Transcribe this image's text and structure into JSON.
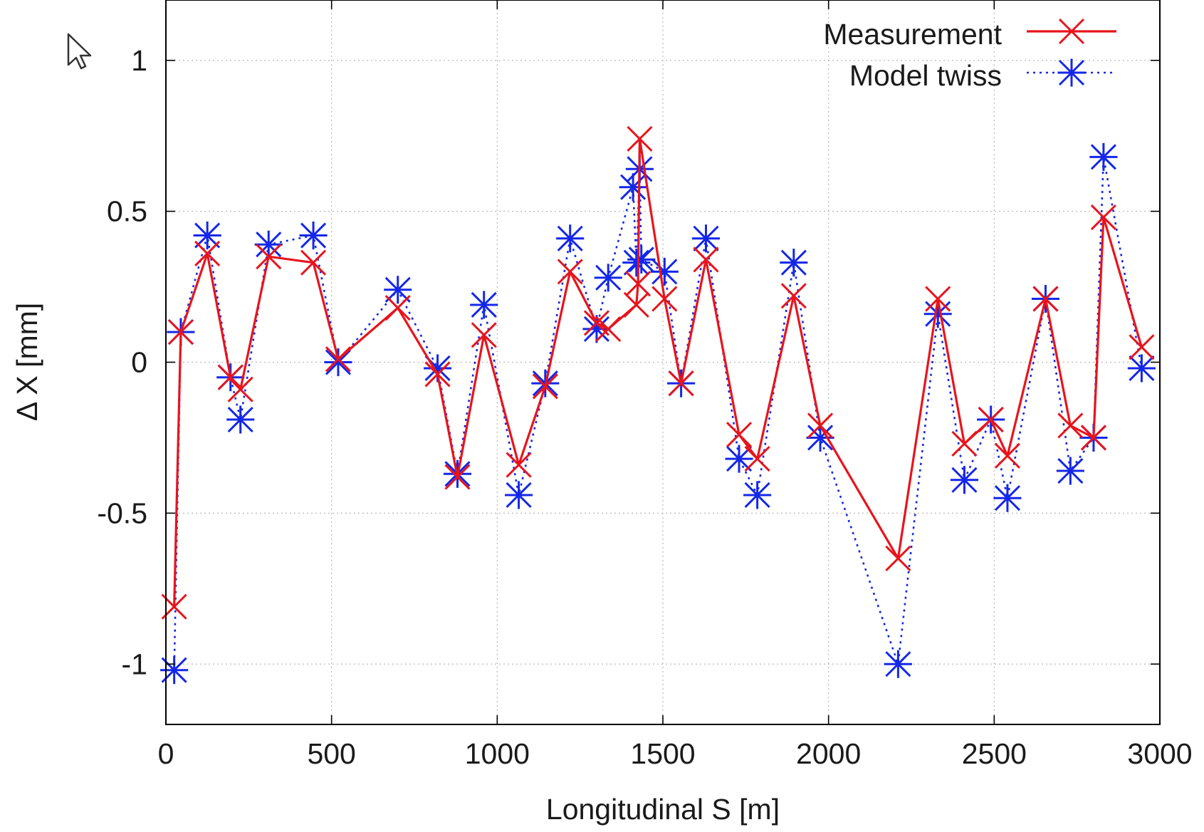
{
  "chart_data": {
    "type": "line",
    "title": "",
    "xlabel": "Longitudinal S [m]",
    "ylabel": "Δ X [mm]",
    "xlim": [
      0,
      3000
    ],
    "ylim": [
      -1.2,
      1.2
    ],
    "xticks": [
      0,
      500,
      1000,
      1500,
      2000,
      2500,
      3000
    ],
    "xtick_labels": [
      "0",
      "500",
      "1000",
      "1500",
      "2000",
      "2500",
      "3000"
    ],
    "yticks": [
      -1,
      -0.5,
      0,
      0.5,
      1
    ],
    "ytick_labels": [
      "-1",
      "-0.5",
      "0",
      "0.5",
      "1"
    ],
    "grid": true,
    "legend_position": "top-right",
    "series": [
      {
        "name": "Measurement",
        "color": "#e8141c",
        "line_style": "solid",
        "marker": "x",
        "points": [
          [
            25,
            -0.81
          ],
          [
            45,
            0.1
          ],
          [
            125,
            0.36
          ],
          [
            195,
            -0.05
          ],
          [
            225,
            -0.09
          ],
          [
            310,
            0.35
          ],
          [
            445,
            0.33
          ],
          [
            520,
            0.01
          ],
          [
            700,
            0.18
          ],
          [
            820,
            -0.04
          ],
          [
            880,
            -0.38
          ],
          [
            960,
            0.09
          ],
          [
            1065,
            -0.34
          ],
          [
            1145,
            -0.08
          ],
          [
            1220,
            0.3
          ],
          [
            1300,
            0.13
          ],
          [
            1335,
            0.11
          ],
          [
            1420,
            0.19
          ],
          [
            1425,
            0.26
          ],
          [
            1430,
            0.74
          ],
          [
            1505,
            0.21
          ],
          [
            1555,
            -0.07
          ],
          [
            1630,
            0.34
          ],
          [
            1730,
            -0.24
          ],
          [
            1785,
            -0.32
          ],
          [
            1895,
            0.22
          ],
          [
            1975,
            -0.21
          ],
          [
            2210,
            -0.65
          ],
          [
            2330,
            0.21
          ],
          [
            2410,
            -0.27
          ],
          [
            2490,
            -0.19
          ],
          [
            2540,
            -0.31
          ],
          [
            2655,
            0.21
          ],
          [
            2730,
            -0.21
          ],
          [
            2800,
            -0.25
          ],
          [
            2830,
            0.48
          ],
          [
            2945,
            0.05
          ]
        ]
      },
      {
        "name": "Model twiss",
        "color": "#1427e8",
        "line_style": "dotted",
        "marker": "asterisk",
        "points": [
          [
            25,
            -1.02
          ],
          [
            45,
            0.1
          ],
          [
            125,
            0.42
          ],
          [
            195,
            -0.05
          ],
          [
            225,
            -0.19
          ],
          [
            310,
            0.39
          ],
          [
            445,
            0.42
          ],
          [
            520,
            0.0
          ],
          [
            700,
            0.24
          ],
          [
            820,
            -0.02
          ],
          [
            880,
            -0.37
          ],
          [
            960,
            0.19
          ],
          [
            1065,
            -0.44
          ],
          [
            1145,
            -0.07
          ],
          [
            1220,
            0.41
          ],
          [
            1300,
            0.11
          ],
          [
            1335,
            0.28
          ],
          [
            1410,
            0.58
          ],
          [
            1420,
            0.33
          ],
          [
            1430,
            0.64
          ],
          [
            1435,
            0.34
          ],
          [
            1505,
            0.3
          ],
          [
            1555,
            -0.07
          ],
          [
            1630,
            0.41
          ],
          [
            1730,
            -0.32
          ],
          [
            1785,
            -0.44
          ],
          [
            1895,
            0.33
          ],
          [
            1975,
            -0.25
          ],
          [
            2210,
            -1.0
          ],
          [
            2330,
            0.16
          ],
          [
            2410,
            -0.39
          ],
          [
            2490,
            -0.19
          ],
          [
            2540,
            -0.45
          ],
          [
            2655,
            0.21
          ],
          [
            2730,
            -0.36
          ],
          [
            2800,
            -0.25
          ],
          [
            2830,
            0.68
          ],
          [
            2945,
            -0.02
          ]
        ]
      }
    ]
  },
  "cursor": {
    "icon": "mouse-pointer-icon"
  }
}
